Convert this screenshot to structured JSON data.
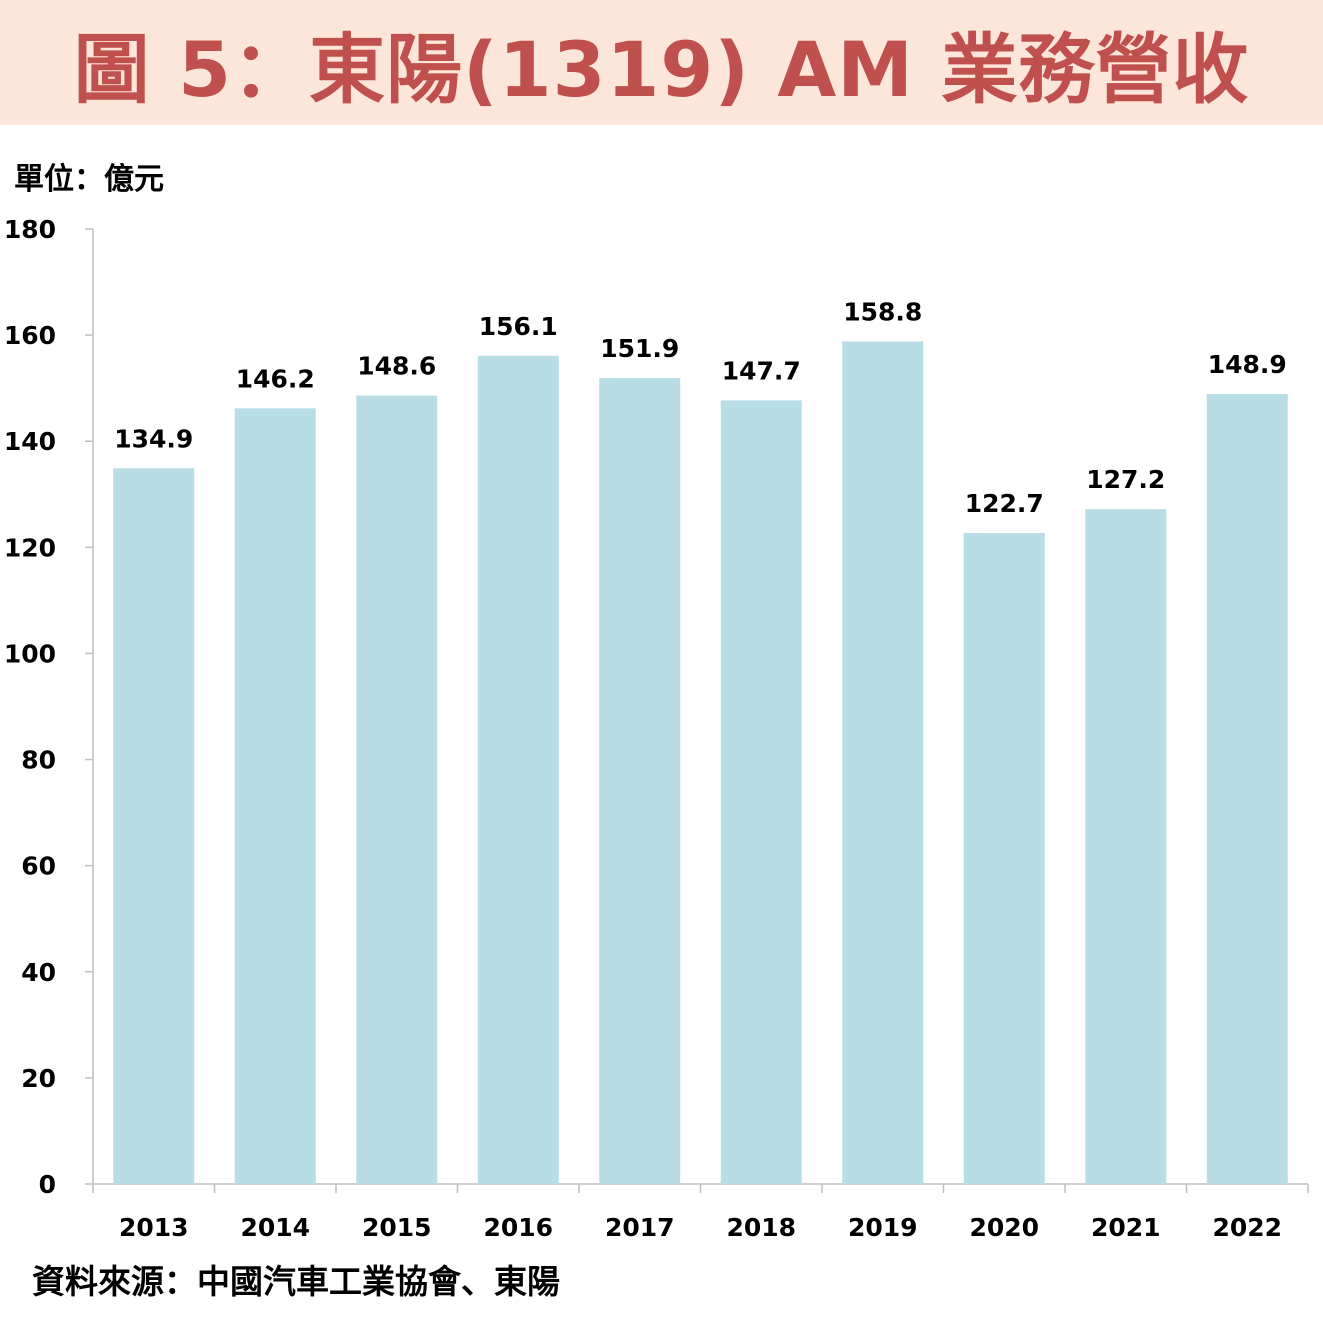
{
  "title": "圖 5：東陽(1319) AM 業務營收",
  "unit_label": "單位：億元",
  "source": "資料來源：中國汽車工業協會、東陽",
  "colors": {
    "bar": "#b8dde7",
    "title_bg": "#fce6d9",
    "title_text": "#c0504d",
    "axis": "#bfbfbf"
  },
  "chart_data": {
    "type": "bar",
    "categories": [
      "2013",
      "2014",
      "2015",
      "2016",
      "2017",
      "2018",
      "2019",
      "2020",
      "2021",
      "2022"
    ],
    "values": [
      134.9,
      146.2,
      148.6,
      156.1,
      151.9,
      147.7,
      158.8,
      122.7,
      127.2,
      148.9
    ],
    "data_labels": [
      "134.9",
      "146.2",
      "148.6",
      "156.1",
      "151.9",
      "147.7",
      "158.8",
      "122.7",
      "127.2",
      "148.9"
    ],
    "ylim": [
      0,
      180
    ],
    "yticks": [
      0,
      20,
      40,
      60,
      80,
      100,
      120,
      140,
      160,
      180
    ],
    "ylabel": "單位：億元",
    "xlabel": "",
    "grid": false,
    "legend": "none"
  }
}
